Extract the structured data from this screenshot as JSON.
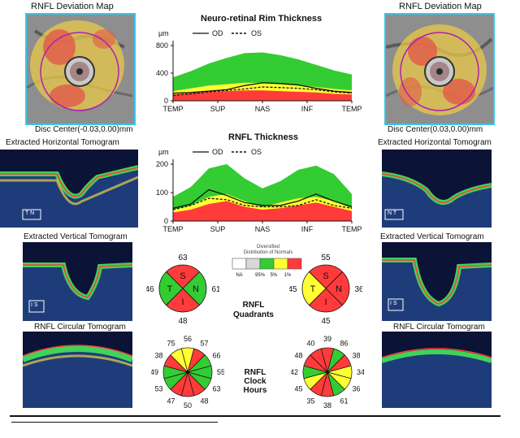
{
  "left_panel": {
    "deviation_map_title": "RNFL Deviation Map",
    "disc_center": "Disc Center(-0.03,0.00)mm",
    "horizontal_title": "Extracted Horizontal Tomogram",
    "vertical_title": "Extracted Vertical Tomogram",
    "circular_title": "RNFL Circular Tomogram",
    "h_marker": "T  N",
    "v_marker": "I  S"
  },
  "right_panel": {
    "deviation_map_title": "RNFL Deviation Map",
    "disc_center": "Disc Center(0.03,0.00)mm",
    "horizontal_title": "Extracted Horizontal Tomogram",
    "vertical_title": "Extracted Vertical Tomogram",
    "circular_title": "RNFL Circular Tomogram",
    "h_marker": "N  T",
    "v_marker": "I  S"
  },
  "charts": {
    "rim": {
      "title": "Neuro-retinal Rim Thickness",
      "unit": "µm",
      "legend_od": "OD",
      "legend_os": "OS",
      "y_ticks": [
        "800",
        "400",
        "0"
      ],
      "x_ticks": [
        "TEMP",
        "SUP",
        "NAS",
        "INF",
        "TEMP"
      ]
    },
    "rnfl": {
      "title": "RNFL Thickness",
      "unit": "µm",
      "legend_od": "OD",
      "legend_os": "OS",
      "y_ticks": [
        "200",
        "100",
        "0"
      ],
      "x_ticks": [
        "TEMP",
        "SUP",
        "NAS",
        "INF",
        "TEMP"
      ]
    }
  },
  "distribution_legend": {
    "title_line1": "Diversified",
    "title_line2": "Distribution of Normals",
    "labels": [
      "NA",
      "95%",
      "5%",
      "1%"
    ],
    "colors": [
      "#ffffff",
      "#d8d8d8",
      "#33cc33",
      "#ffff33",
      "#ff3b3b"
    ]
  },
  "quadrants": {
    "label_line1": "RNFL",
    "label_line2": "Quadrants",
    "od": {
      "top": "63",
      "bottom": "48",
      "left": "46",
      "right": "61",
      "S": "S",
      "N": "N",
      "I": "I",
      "T": "T"
    },
    "os": {
      "top": "55",
      "bottom": "45",
      "left": "45",
      "right": "36",
      "S": "S",
      "N": "N",
      "I": "I",
      "T": "T"
    }
  },
  "clock_hours": {
    "label_line1": "RNFL",
    "label_line2": "Clock",
    "label_line3": "Hours",
    "od_values": [
      "56",
      "57",
      "66",
      "55",
      "63",
      "48",
      "50",
      "47",
      "53",
      "49",
      "38",
      "75"
    ],
    "os_values": [
      "39",
      "86",
      "38",
      "34",
      "36",
      "61",
      "38",
      "35",
      "45",
      "42",
      "48",
      "40"
    ]
  },
  "colors": {
    "green": "#33cc33",
    "yellow": "#ffff33",
    "red": "#ff3b3b",
    "frame": "#35c7e8"
  },
  "chart_data": [
    {
      "type": "area",
      "title": "Neuro-retinal Rim Thickness",
      "ylabel": "µm",
      "ylim": [
        0,
        800
      ],
      "x_ticks": [
        "TEMP",
        "SUP",
        "NAS",
        "INF",
        "TEMP"
      ],
      "bands": {
        "green_upper": [
          340,
          430,
          540,
          620,
          690,
          700,
          660,
          600,
          520,
          440,
          380
        ],
        "yellow_upper": [
          140,
          180,
          220,
          240,
          260,
          260,
          240,
          220,
          200,
          170,
          150
        ],
        "red_upper": [
          90,
          110,
          130,
          140,
          150,
          150,
          140,
          130,
          120,
          100,
          90
        ]
      },
      "series": [
        {
          "name": "OD",
          "values": [
            110,
            120,
            140,
            160,
            220,
            260,
            250,
            230,
            180,
            140,
            120
          ]
        },
        {
          "name": "OS",
          "values": [
            80,
            100,
            130,
            150,
            170,
            200,
            190,
            180,
            160,
            130,
            110
          ]
        }
      ]
    },
    {
      "type": "area",
      "title": "RNFL Thickness",
      "ylabel": "µm",
      "ylim": [
        0,
        200
      ],
      "x_ticks": [
        "TEMP",
        "SUP",
        "NAS",
        "INF",
        "TEMP"
      ],
      "bands": {
        "green_upper": [
          85,
          120,
          185,
          200,
          150,
          115,
          140,
          180,
          195,
          165,
          95
        ],
        "yellow_upper": [
          40,
          55,
          85,
          95,
          70,
          50,
          65,
          80,
          85,
          70,
          45
        ],
        "red_upper": [
          30,
          40,
          60,
          70,
          50,
          40,
          45,
          55,
          65,
          50,
          35
        ]
      },
      "series": [
        {
          "name": "OD",
          "values": [
            45,
            60,
            110,
            90,
            65,
            55,
            55,
            70,
            95,
            70,
            50
          ]
        },
        {
          "name": "OS",
          "values": [
            40,
            55,
            80,
            75,
            55,
            50,
            50,
            55,
            75,
            55,
            45
          ]
        }
      ]
    }
  ]
}
